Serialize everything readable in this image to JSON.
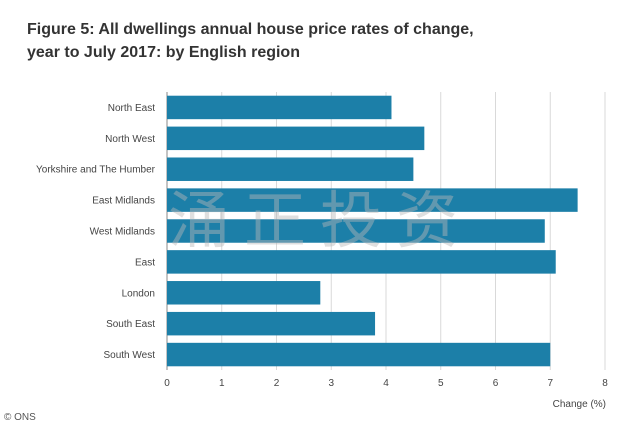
{
  "title_line1": "Figure 5: All dwellings annual house price rates of change,",
  "title_line2": "year to July 2017: by English region",
  "watermark_text": "涌正投资",
  "credit": "© ONS",
  "colors": {
    "bar": "#1c7fa8",
    "grid": "#d9d9d9",
    "axis": "#888888"
  },
  "chart_data": {
    "type": "bar",
    "orientation": "horizontal",
    "categories": [
      "North East",
      "North West",
      "Yorkshire and The Humber",
      "East Midlands",
      "West Midlands",
      "East",
      "London",
      "South East",
      "South West"
    ],
    "values": [
      4.1,
      4.7,
      4.5,
      7.5,
      6.9,
      7.1,
      2.8,
      3.8,
      7.0
    ],
    "xlabel": "Change (%)",
    "xlim": [
      0,
      8
    ],
    "xticks": [
      "0",
      "1",
      "2",
      "3",
      "4",
      "5",
      "6",
      "7",
      "8"
    ],
    "grid": true
  }
}
